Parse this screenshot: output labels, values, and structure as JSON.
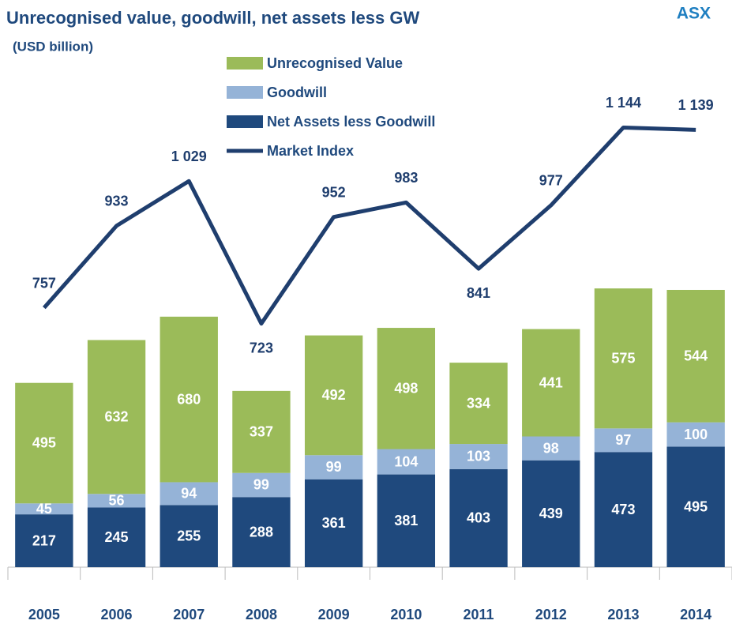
{
  "chart_data": {
    "type": "stacked_bar_line",
    "title": "Unrecognised value, goodwill, net assets less GW",
    "subtitle": "(USD billion)",
    "annotation": "ASX",
    "categories": [
      "2005",
      "2006",
      "2007",
      "2008",
      "2009",
      "2010",
      "2011",
      "2012",
      "2013",
      "2014"
    ],
    "series": [
      {
        "name": "Net Assets less Goodwill",
        "color": "#1f497d",
        "values": [
          217,
          245,
          255,
          288,
          361,
          381,
          403,
          439,
          473,
          495
        ]
      },
      {
        "name": "Goodwill",
        "color": "#95b3d7",
        "values": [
          45,
          56,
          94,
          99,
          99,
          104,
          103,
          98,
          97,
          100
        ]
      },
      {
        "name": "Unrecognised Value",
        "color": "#9bbb59",
        "values": [
          495,
          632,
          680,
          337,
          492,
          498,
          334,
          441,
          575,
          544
        ]
      },
      {
        "name": "Market Index",
        "color": "#1f3e6e",
        "axis": "y2",
        "values": [
          757,
          933,
          1029,
          723,
          952,
          983,
          841,
          977,
          1144,
          1139
        ],
        "value_labels": [
          "757",
          "933",
          "1 029",
          "723",
          "952",
          "983",
          "841",
          "977",
          "1 144",
          "1 139"
        ]
      }
    ],
    "legend_order": [
      2,
      1,
      0,
      3
    ],
    "ylim": [
      0,
      2200
    ],
    "y2lim": [
      200,
      1350
    ]
  }
}
